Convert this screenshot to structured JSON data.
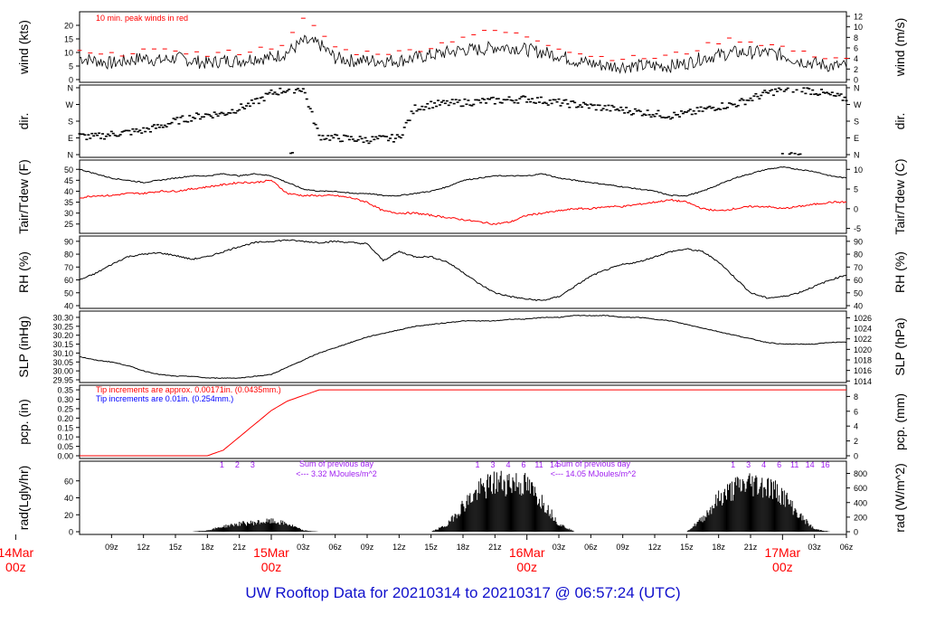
{
  "footer": {
    "prefix": "UW Rooftop Data for",
    "start": "20210314",
    "to_word": "to",
    "end": "20210317 @ 06:57:24",
    "tz": "(UTC)"
  },
  "colors": {
    "black": "#000000",
    "red": "#ff0000",
    "blue": "#0000ff",
    "purple": "#a020f0",
    "footer_blue": "#1010cc"
  },
  "chart_data": [
    {
      "type": "line",
      "panel": "wind",
      "ylabel": "wind (kts)",
      "ylabel_right": "wind (m/s)",
      "ylim": [
        0,
        24
      ],
      "yticks": [
        0,
        5,
        10,
        15,
        20
      ],
      "yticks_right": [
        0,
        2,
        4,
        6,
        8,
        10,
        12
      ],
      "annotation": "10 min. peak winds in red",
      "series": [
        {
          "values_kts_by_hour": [
            8,
            7,
            6,
            7,
            8,
            7,
            8,
            7,
            6,
            7,
            7,
            8,
            8,
            10,
            14,
            13,
            8,
            7,
            7,
            7,
            7,
            8,
            9,
            10,
            11,
            11,
            12,
            12,
            11,
            10,
            9,
            7,
            6,
            5,
            5,
            5,
            5,
            5,
            6,
            8,
            9,
            10,
            10,
            10,
            9,
            7,
            6,
            5,
            5
          ]
        },
        {
          "gust_kts_by_hour": [
            10,
            9,
            9,
            10,
            11,
            10,
            11,
            10,
            9,
            10,
            10,
            11,
            12,
            14,
            22,
            18,
            12,
            10,
            10,
            10,
            10,
            11,
            12,
            14,
            16,
            17,
            18,
            17,
            16,
            14,
            12,
            10,
            9,
            8,
            8,
            8,
            8,
            9,
            10,
            12,
            14,
            15,
            14,
            13,
            12,
            10,
            9,
            8,
            8
          ]
        }
      ]
    },
    {
      "type": "scatter",
      "panel": "dir",
      "ylabel": "dir.",
      "ylabel_right": "dir.",
      "yticks": [
        "N",
        "E",
        "S",
        "W",
        "N"
      ],
      "yticks_right": [
        "N",
        "E",
        "S",
        "W",
        "N"
      ],
      "dir_deg_by_hour": [
        100,
        95,
        110,
        120,
        130,
        150,
        180,
        200,
        215,
        220,
        250,
        280,
        330,
        350,
        355,
        100,
        90,
        85,
        80,
        85,
        90,
        250,
        270,
        275,
        280,
        285,
        290,
        295,
        300,
        290,
        280,
        270,
        260,
        250,
        240,
        230,
        220,
        210,
        220,
        240,
        260,
        270,
        300,
        330,
        350,
        355,
        340,
        320,
        300
      ]
    },
    {
      "type": "line",
      "panel": "temp",
      "ylabel": "Tair/Tdew (F)",
      "ylabel_right": "Tair/Tdew (C)",
      "ylim": [
        22,
        53
      ],
      "yticks": [
        25,
        30,
        35,
        40,
        45,
        50
      ],
      "yticks_right": [
        -5,
        0,
        5,
        10
      ],
      "series": [
        {
          "tair_F_by_hour": [
            50,
            48,
            46,
            45,
            44,
            45,
            46,
            47,
            47,
            48,
            47,
            48,
            47,
            44,
            41,
            40,
            40,
            39,
            39,
            38,
            38,
            39,
            40,
            42,
            45,
            46,
            47,
            47,
            47,
            48,
            46,
            45,
            44,
            43,
            42,
            41,
            40,
            38,
            38,
            40,
            43,
            46,
            48,
            50,
            51,
            50,
            49,
            47,
            46
          ]
        },
        {
          "tdew_F_by_hour": [
            37,
            38,
            38,
            39,
            39,
            40,
            40,
            41,
            42,
            43,
            44,
            44,
            45,
            39,
            38,
            38,
            38,
            37,
            35,
            31,
            30,
            30,
            29,
            28,
            27,
            26,
            25,
            26,
            29,
            30,
            31,
            32,
            32,
            33,
            33,
            34,
            35,
            36,
            35,
            32,
            31,
            32,
            33,
            33,
            32,
            33,
            34,
            35,
            35
          ]
        }
      ]
    },
    {
      "type": "line",
      "panel": "rh",
      "ylabel": "RH (%)",
      "ylabel_right": "RH (%)",
      "ylim": [
        40,
        92
      ],
      "yticks": [
        40,
        50,
        60,
        70,
        80,
        90
      ],
      "yticks_right": [
        40,
        50,
        60,
        70,
        80,
        90
      ],
      "rh_by_hour": [
        60,
        65,
        72,
        78,
        80,
        81,
        79,
        76,
        78,
        82,
        86,
        89,
        90,
        91,
        90,
        89,
        90,
        89,
        88,
        75,
        82,
        78,
        78,
        74,
        66,
        57,
        50,
        47,
        45,
        44,
        47,
        55,
        63,
        68,
        72,
        74,
        78,
        82,
        84,
        82,
        74,
        62,
        50,
        46,
        47,
        50,
        55,
        60,
        64
      ]
    },
    {
      "type": "line",
      "panel": "slp",
      "ylabel": "SLP (inHg)",
      "ylabel_right": "SLP (hPa)",
      "ylim": [
        29.95,
        30.32
      ],
      "yticks": [
        29.95,
        30.0,
        30.05,
        30.1,
        30.15,
        30.2,
        30.25,
        30.3
      ],
      "yticks_right": [
        1014,
        1016,
        1018,
        1020,
        1022,
        1024,
        1026
      ],
      "slp_inHg_by_hour": [
        30.08,
        30.06,
        30.05,
        30.03,
        30.0,
        29.98,
        29.97,
        29.97,
        29.96,
        29.96,
        29.96,
        29.97,
        29.98,
        30.02,
        30.06,
        30.1,
        30.13,
        30.16,
        30.19,
        30.21,
        30.23,
        30.25,
        30.26,
        30.27,
        30.28,
        30.28,
        30.28,
        30.29,
        30.29,
        30.3,
        30.3,
        30.31,
        30.31,
        30.31,
        30.3,
        30.3,
        30.29,
        30.28,
        30.26,
        30.24,
        30.22,
        30.2,
        30.18,
        30.16,
        30.15,
        30.15,
        30.15,
        30.16,
        30.16
      ]
    },
    {
      "type": "line",
      "panel": "pcp",
      "ylabel": "pcp. (in)",
      "ylabel_right": "pcp. (mm)",
      "ylim": [
        0,
        0.36
      ],
      "yticks": [
        0.0,
        0.05,
        0.1,
        0.15,
        0.2,
        0.25,
        0.3,
        0.35
      ],
      "yticks_right": [
        0,
        2,
        4,
        6,
        8
      ],
      "note_red": "Tip increments are approx. 0.00171in. (0.0435mm.)",
      "note_blue": "Tip increments are 0.01in. (0.254mm.)",
      "pcp_in_by_hour": [
        0,
        0,
        0,
        0,
        0,
        0,
        0,
        0,
        0,
        0.03,
        0.1,
        0.17,
        0.24,
        0.29,
        0.32,
        0.35,
        0.35,
        0.35,
        0.35,
        0.35,
        0.35,
        0.35,
        0.35,
        0.35,
        0.35,
        0.35,
        0.35,
        0.35,
        0.35,
        0.35,
        0.35,
        0.35,
        0.35,
        0.35,
        0.35,
        0.35,
        0.35,
        0.35,
        0.35,
        0.35,
        0.35,
        0.35,
        0.35,
        0.35,
        0.35,
        0.35,
        0.35,
        0.35,
        0.35
      ]
    },
    {
      "type": "area",
      "panel": "rad",
      "ylabel": "rad(Lgly/hr)",
      "ylabel_right": "rad (W/m^2)",
      "ylim": [
        0,
        80
      ],
      "yticks": [
        0,
        20,
        40,
        60
      ],
      "yticks_right": [
        0,
        200,
        400,
        600,
        800
      ],
      "sum_labels": [
        {
          "line1": "Sum of previous day",
          "line2": "<--- 3.32 MJoules/m^2"
        },
        {
          "line1": "Sum of previous day",
          "line2": "<--- 14.05 MJoules/m^2"
        }
      ],
      "hour_markers": [
        {
          "day": 1,
          "labels": [
            "1",
            "2",
            "3"
          ]
        },
        {
          "day": 2,
          "labels": [
            "1",
            "3",
            "4",
            "6",
            "11",
            "14"
          ]
        },
        {
          "day": 3,
          "labels": [
            "1",
            "3",
            "4",
            "6",
            "11",
            "14",
            "16"
          ]
        }
      ],
      "rad_by_hour": [
        0,
        0,
        0,
        0,
        0,
        0,
        0,
        0,
        2,
        8,
        12,
        14,
        16,
        12,
        2,
        0,
        0,
        0,
        0,
        0,
        0,
        0,
        0,
        10,
        40,
        62,
        74,
        76,
        70,
        45,
        12,
        0,
        0,
        0,
        0,
        0,
        0,
        0,
        0,
        20,
        50,
        66,
        74,
        70,
        56,
        26,
        4,
        0,
        0
      ]
    }
  ],
  "xaxis": {
    "hour_ticks": [
      "09z",
      "12z",
      "15z",
      "18z",
      "21z",
      "03z",
      "06z",
      "09z",
      "12z",
      "15z",
      "18z",
      "21z",
      "03z",
      "06z",
      "09z",
      "12z",
      "15z",
      "18z",
      "21z",
      "03z",
      "06z"
    ],
    "day_labels": [
      {
        "date": "14Mar",
        "time": "00z"
      },
      {
        "date": "15Mar",
        "time": "00z"
      },
      {
        "date": "16Mar",
        "time": "00z"
      },
      {
        "date": "17Mar",
        "time": "00z"
      }
    ]
  }
}
